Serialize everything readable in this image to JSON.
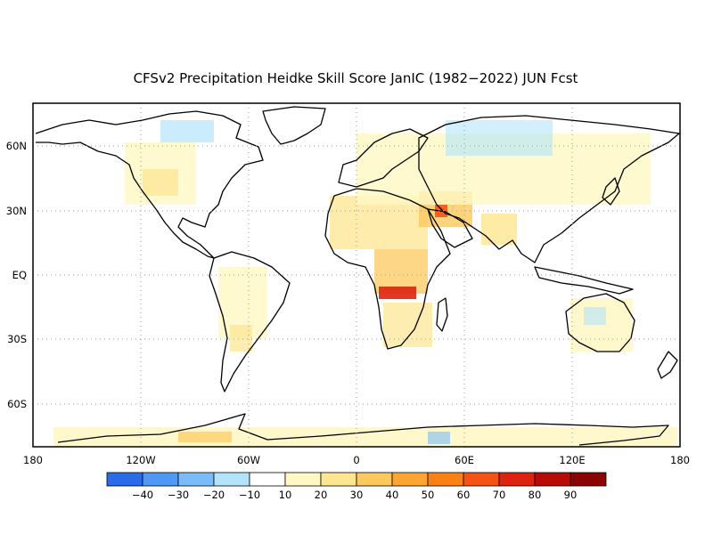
{
  "title": "CFSv2 Precipitation Heidke Skill Score JanIC (1982−2022) JUN Fcst",
  "lon_labels": [
    "180",
    "120W",
    "60W",
    "0",
    "60E",
    "120E",
    "180"
  ],
  "lat_labels": [
    "60N",
    "30N",
    "EQ",
    "30S",
    "60S"
  ],
  "colorbar": {
    "labels": [
      "−40",
      "−30",
      "−20",
      "−10",
      "10",
      "20",
      "30",
      "40",
      "50",
      "60",
      "70",
      "80",
      "90"
    ],
    "colors": [
      "#2a6bea",
      "#4f98f5",
      "#7bbcf8",
      "#b3e4fb",
      "#ffffff",
      "#fff7c4",
      "#fde690",
      "#fdc95e",
      "#fca532",
      "#fb8113",
      "#f55316",
      "#dd230f",
      "#b90a0a",
      "#8c0303"
    ]
  },
  "map": {
    "projection": "equirectangular",
    "lon_range": [
      -180,
      180
    ],
    "lat_range": [
      -80,
      80
    ],
    "gridlines": "dotted, every 60° lon / 30° lat"
  }
}
